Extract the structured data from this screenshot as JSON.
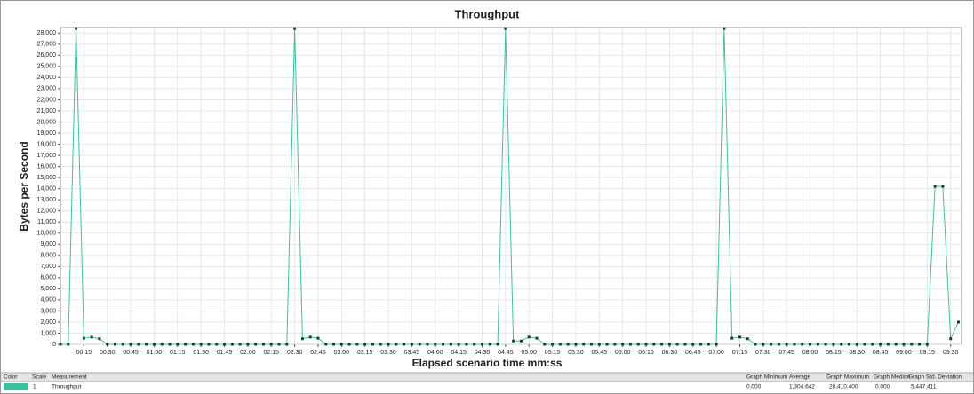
{
  "chart_data": {
    "type": "line",
    "title": "Throughput",
    "x_label": "Elapsed scenario time mm:ss",
    "y_label": "Bytes per Second",
    "x": [
      0,
      5,
      10,
      15,
      20,
      25,
      30,
      35,
      40,
      45,
      50,
      55,
      60,
      65,
      70,
      75,
      80,
      85,
      90,
      95,
      100,
      105,
      110,
      115,
      120,
      125,
      130,
      135,
      140,
      145,
      150,
      155,
      160,
      165,
      170,
      175,
      180,
      185,
      190,
      195,
      200,
      205,
      210,
      215,
      220,
      225,
      230,
      235,
      240,
      245,
      250,
      255,
      260,
      265,
      270,
      275,
      280,
      285,
      290,
      295,
      300,
      305,
      310,
      315,
      320,
      325,
      330,
      335,
      340,
      345,
      350,
      355,
      360,
      365,
      370,
      375,
      380,
      385,
      390,
      395,
      400,
      405,
      410,
      415,
      420,
      425,
      430,
      435,
      440,
      445,
      450,
      455,
      460,
      465,
      470,
      475,
      480,
      485,
      490,
      495,
      500,
      505,
      510,
      515,
      520,
      525,
      530,
      535,
      540,
      545,
      550,
      555,
      560,
      565,
      570,
      575
    ],
    "series": [
      {
        "name": "Throughput",
        "color": "#3fbf9f",
        "marker_color": "#1d3b38",
        "values": [
          0,
          0,
          28410,
          550,
          650,
          500,
          0,
          0,
          0,
          0,
          0,
          0,
          0,
          0,
          0,
          0,
          0,
          0,
          0,
          0,
          0,
          0,
          0,
          0,
          0,
          0,
          0,
          0,
          0,
          0,
          28410,
          500,
          650,
          550,
          0,
          0,
          0,
          0,
          0,
          0,
          0,
          0,
          0,
          0,
          0,
          0,
          0,
          0,
          0,
          0,
          0,
          0,
          0,
          0,
          0,
          0,
          0,
          28410,
          300,
          300,
          650,
          550,
          0,
          0,
          0,
          0,
          0,
          0,
          0,
          0,
          0,
          0,
          0,
          0,
          0,
          0,
          0,
          0,
          0,
          0,
          0,
          0,
          0,
          0,
          0,
          28410,
          550,
          650,
          500,
          0,
          0,
          0,
          0,
          0,
          0,
          0,
          0,
          0,
          0,
          0,
          0,
          0,
          0,
          0,
          0,
          0,
          0,
          0,
          0,
          0,
          0,
          0,
          14200,
          14200,
          500,
          2000
        ]
      }
    ],
    "xlim": [
      0,
      577
    ],
    "ylim": [
      0,
      28500
    ],
    "xticks": [
      {
        "value": 15,
        "label": "00:15"
      },
      {
        "value": 30,
        "label": "00:30"
      },
      {
        "value": 45,
        "label": "00:45"
      },
      {
        "value": 60,
        "label": "01:00"
      },
      {
        "value": 75,
        "label": "01:15"
      },
      {
        "value": 90,
        "label": "01:30"
      },
      {
        "value": 105,
        "label": "01:45"
      },
      {
        "value": 120,
        "label": "02:00"
      },
      {
        "value": 135,
        "label": "02:15"
      },
      {
        "value": 150,
        "label": "02:30"
      },
      {
        "value": 165,
        "label": "02:45"
      },
      {
        "value": 180,
        "label": "03:00"
      },
      {
        "value": 195,
        "label": "03:15"
      },
      {
        "value": 210,
        "label": "03:30"
      },
      {
        "value": 225,
        "label": "03:45"
      },
      {
        "value": 240,
        "label": "04:00"
      },
      {
        "value": 255,
        "label": "04:15"
      },
      {
        "value": 270,
        "label": "04:30"
      },
      {
        "value": 285,
        "label": "04:45"
      },
      {
        "value": 300,
        "label": "05:00"
      },
      {
        "value": 315,
        "label": "05:15"
      },
      {
        "value": 330,
        "label": "05:30"
      },
      {
        "value": 345,
        "label": "05:45"
      },
      {
        "value": 360,
        "label": "06:00"
      },
      {
        "value": 375,
        "label": "06:15"
      },
      {
        "value": 390,
        "label": "06:30"
      },
      {
        "value": 405,
        "label": "06:45"
      },
      {
        "value": 420,
        "label": "07:00"
      },
      {
        "value": 435,
        "label": "07:15"
      },
      {
        "value": 450,
        "label": "07:30"
      },
      {
        "value": 465,
        "label": "07:45"
      },
      {
        "value": 480,
        "label": "08:00"
      },
      {
        "value": 495,
        "label": "08:15"
      },
      {
        "value": 510,
        "label": "08:30"
      },
      {
        "value": 525,
        "label": "08:45"
      },
      {
        "value": 540,
        "label": "09:00"
      },
      {
        "value": 555,
        "label": "09:15"
      },
      {
        "value": 570,
        "label": "09:30"
      }
    ],
    "yticks": [
      0,
      {
        "value": 1000,
        "label": "1,000"
      },
      {
        "value": 2000,
        "label": "2,000"
      },
      {
        "value": 3000,
        "label": "3,000"
      },
      {
        "value": 4000,
        "label": "4,000"
      },
      {
        "value": 5000,
        "label": "5,000"
      },
      {
        "value": 6000,
        "label": "6,000"
      },
      {
        "value": 7000,
        "label": "7,000"
      },
      {
        "value": 8000,
        "label": "8,000"
      },
      {
        "value": 9000,
        "label": "9,000"
      },
      {
        "value": 10000,
        "label": "10,000"
      },
      {
        "value": 11000,
        "label": "11,000"
      },
      {
        "value": 12000,
        "label": "12,000"
      },
      {
        "value": 13000,
        "label": "13,000"
      },
      {
        "value": 14000,
        "label": "14,000"
      },
      {
        "value": 15000,
        "label": "15,000"
      },
      {
        "value": 16000,
        "label": "16,000"
      },
      {
        "value": 17000,
        "label": "17,000"
      },
      {
        "value": 18000,
        "label": "18,000"
      },
      {
        "value": 19000,
        "label": "19,000"
      },
      {
        "value": 20000,
        "label": "20,000"
      },
      {
        "value": 21000,
        "label": "21,000"
      },
      {
        "value": 22000,
        "label": "22,000"
      },
      {
        "value": 23000,
        "label": "23,000"
      },
      {
        "value": 24000,
        "label": "24,000"
      },
      {
        "value": 25000,
        "label": "25,000"
      },
      {
        "value": 26000,
        "label": "26,000"
      },
      {
        "value": 27000,
        "label": "27,000"
      },
      {
        "value": 28000,
        "label": "28,000"
      }
    ],
    "grid": true
  },
  "legend_table": {
    "headers": [
      "Color",
      "Scale",
      "Measurement",
      "Graph Minimum",
      "Average",
      "Graph Maximum",
      "Graph Median",
      "Graph Std. Deviation"
    ],
    "rows": [
      [
        "1",
        "0.000",
        "1,304.642",
        "28,410.400",
        "0.000",
        "5,447.411"
      ]
    ]
  }
}
